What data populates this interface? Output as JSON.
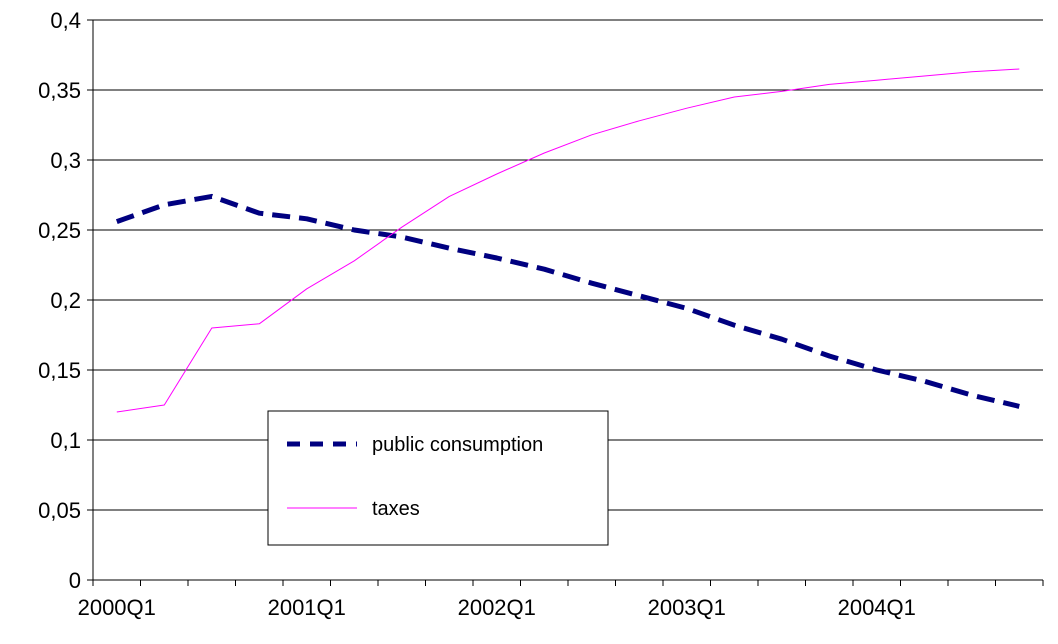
{
  "chart_data": {
    "type": "line",
    "x_tick_labels": [
      "2000Q1",
      "2001Q1",
      "2002Q1",
      "2003Q1",
      "2004Q1"
    ],
    "x": [
      "2000Q1",
      "2000Q2",
      "2000Q3",
      "2000Q4",
      "2001Q1",
      "2001Q2",
      "2001Q3",
      "2001Q4",
      "2002Q1",
      "2002Q2",
      "2002Q3",
      "2002Q4",
      "2003Q1",
      "2003Q2",
      "2003Q3",
      "2003Q4",
      "2004Q1",
      "2004Q2",
      "2004Q3",
      "2004Q4"
    ],
    "ylim": [
      0,
      0.4
    ],
    "y_ticks": [
      0,
      0.05,
      0.1,
      0.15,
      0.2,
      0.25,
      0.3,
      0.35,
      0.4
    ],
    "y_tick_labels": [
      "0",
      "0,05",
      "0,1",
      "0,15",
      "0,2",
      "0,25",
      "0,3",
      "0,35",
      "0,4"
    ],
    "grid": "horizontal",
    "legend_position": "lower-left",
    "series": [
      {
        "name": "public consumption",
        "color": "#000080",
        "style": "dashed-thick",
        "values": [
          0.256,
          0.268,
          0.274,
          0.262,
          0.258,
          0.25,
          0.245,
          0.237,
          0.23,
          0.222,
          0.212,
          0.203,
          0.194,
          0.182,
          0.172,
          0.16,
          0.15,
          0.142,
          0.132,
          0.124
        ]
      },
      {
        "name": "taxes",
        "color": "#ff00ff",
        "style": "solid-thin",
        "values": [
          0.12,
          0.125,
          0.18,
          0.183,
          0.208,
          0.228,
          0.252,
          0.274,
          0.29,
          0.305,
          0.318,
          0.328,
          0.337,
          0.345,
          0.349,
          0.354,
          0.357,
          0.36,
          0.363,
          0.365
        ]
      }
    ]
  }
}
